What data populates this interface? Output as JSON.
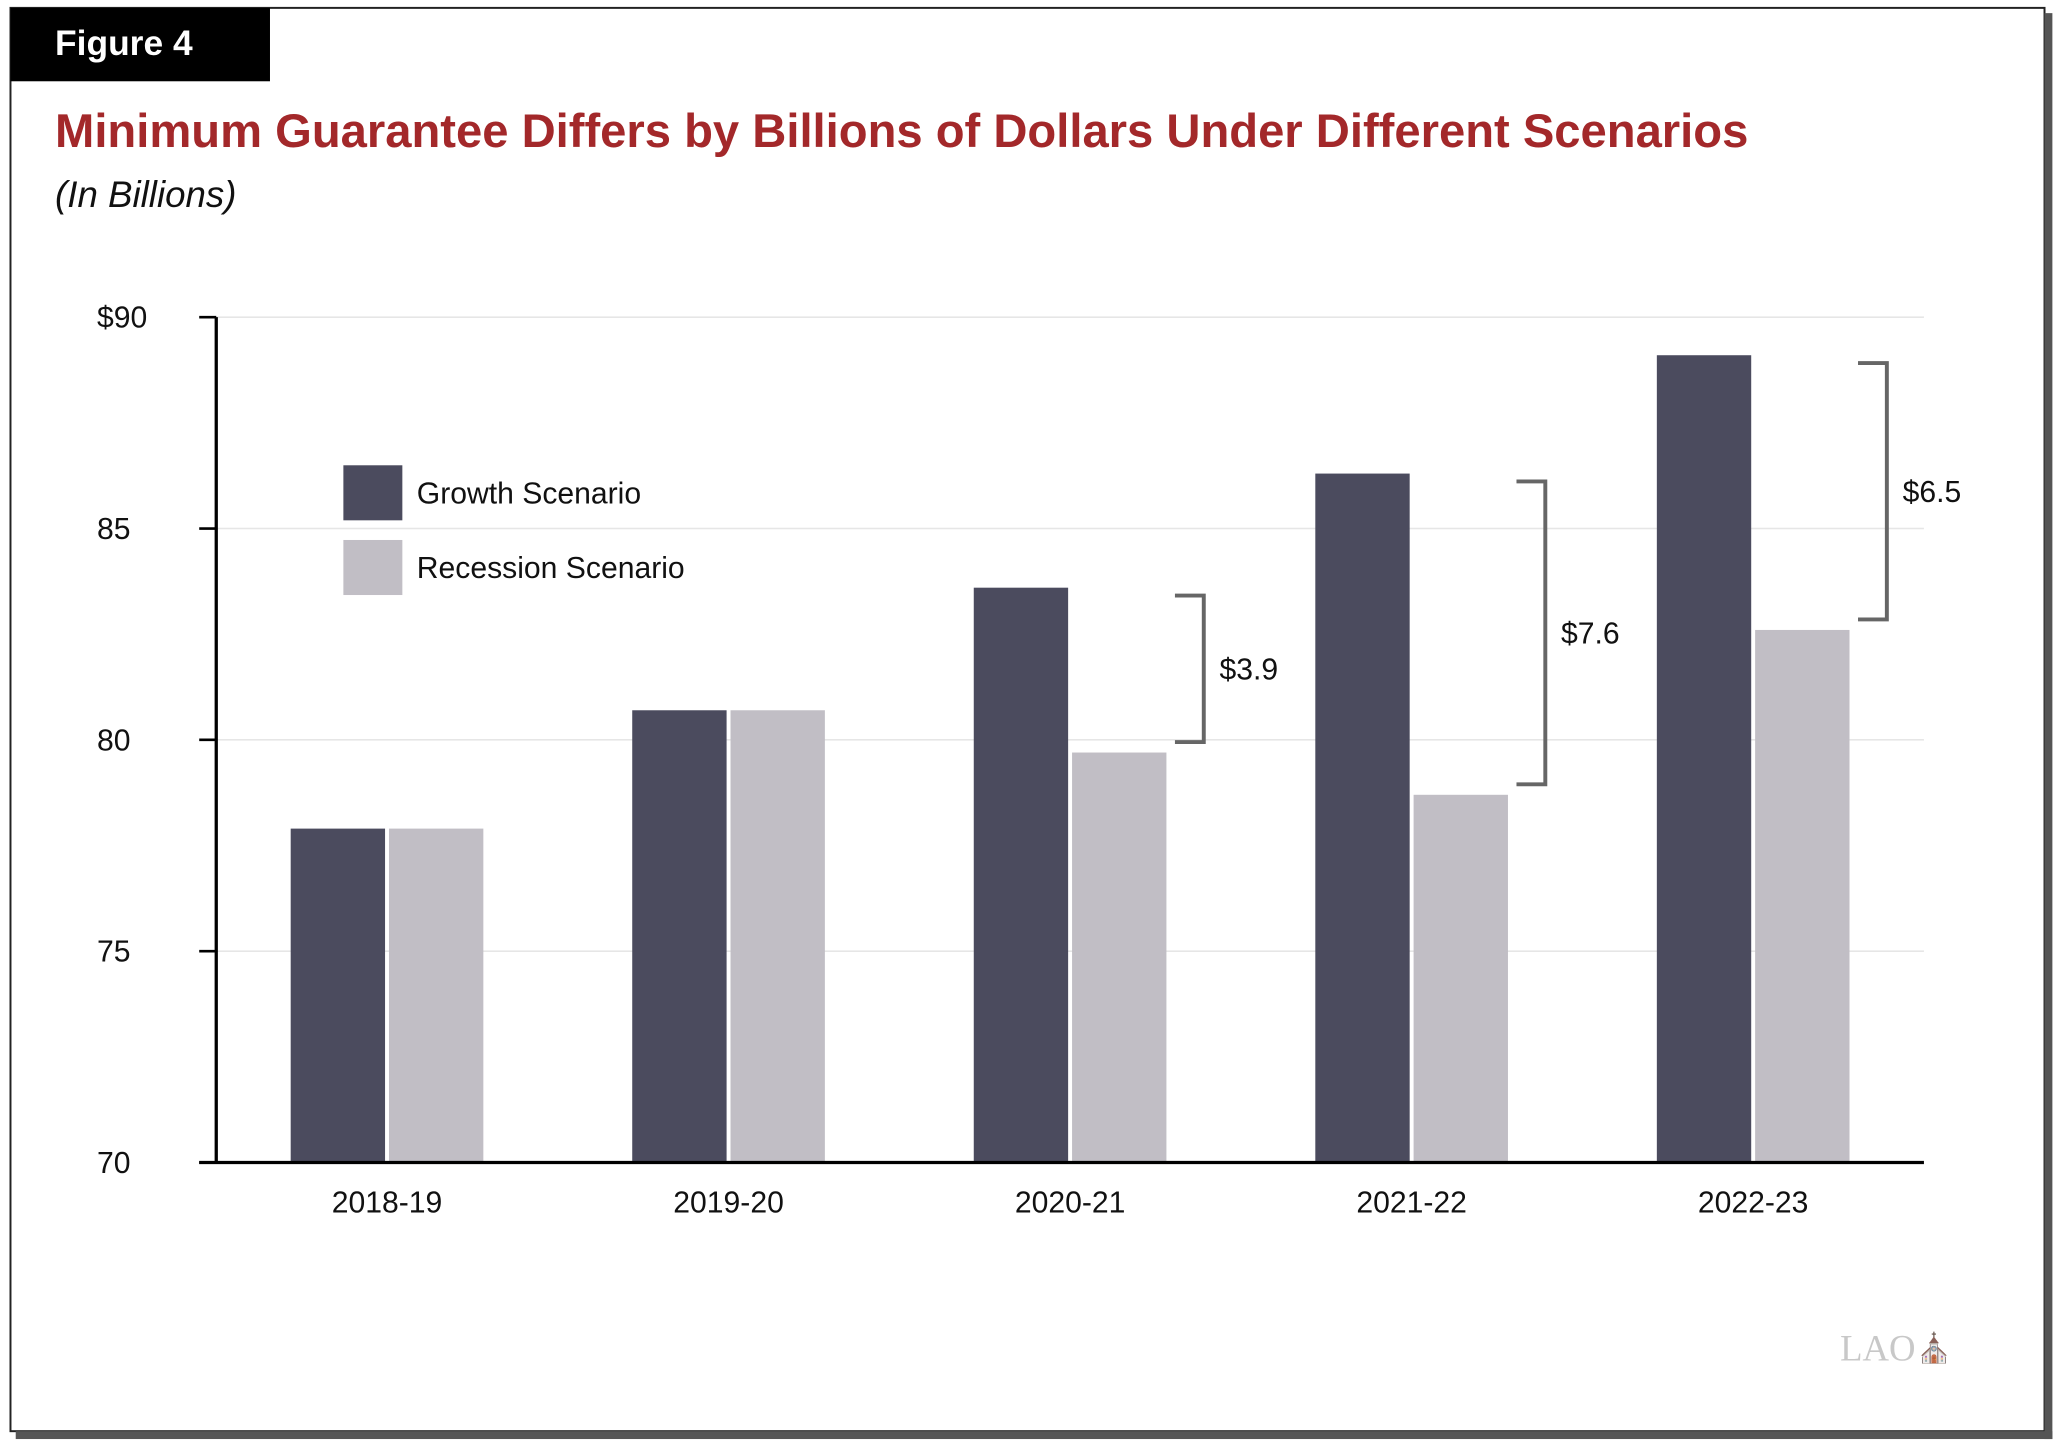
{
  "figure_label": "Figure 4",
  "watermark": "LAO",
  "chart_data": {
    "type": "bar",
    "title": "Minimum Guarantee Differs by Billions of Dollars Under Different Scenarios",
    "subtitle": "(In Billions)",
    "xlabel": "",
    "ylabel": "",
    "ylim": [
      70,
      90
    ],
    "yticks": [
      70,
      75,
      80,
      85,
      90
    ],
    "ytick_labels": [
      "70",
      "75",
      "80",
      "85",
      "$90"
    ],
    "grid": true,
    "legend_position": "top-left",
    "categories": [
      "2018-19",
      "2019-20",
      "2020-21",
      "2021-22",
      "2022-23"
    ],
    "series": [
      {
        "name": "Growth Scenario",
        "color": "#4b4b5e",
        "values": [
          77.9,
          80.7,
          83.6,
          86.3,
          89.1
        ]
      },
      {
        "name": "Recession Scenario",
        "color": "#c1bec5",
        "values": [
          77.9,
          80.7,
          79.7,
          78.7,
          82.6
        ]
      }
    ],
    "annotations": [
      {
        "category": "2020-21",
        "label": "$3.9"
      },
      {
        "category": "2021-22",
        "label": "$7.6"
      },
      {
        "category": "2022-23",
        "label": "$6.5"
      }
    ]
  },
  "colors": {
    "title": "#a3282a",
    "header_bg": "#000000"
  }
}
